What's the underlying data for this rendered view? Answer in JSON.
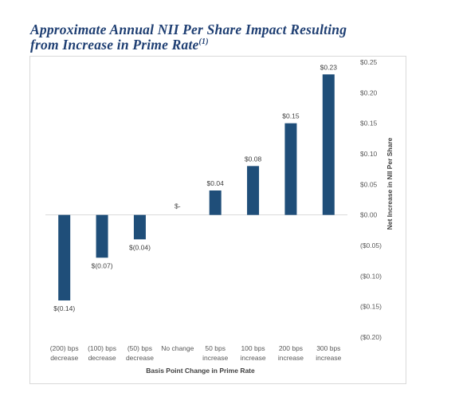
{
  "title_line1": "Approximate Annual NII Per Share Impact Resulting",
  "title_line2": "from Increase in Prime Rate",
  "title_footnote": "(1)",
  "chart_data": {
    "type": "bar",
    "title": "Approximate Annual NII Per Share Impact Resulting from Increase in Prime Rate(1)",
    "xlabel": "Basis Point Change in Prime Rate",
    "ylabel": "Net Increase in NII Per Share",
    "categories": [
      [
        "(200) bps",
        "decrease"
      ],
      [
        "(100) bps",
        "decrease"
      ],
      [
        "(50) bps",
        "decrease"
      ],
      [
        "No change"
      ],
      [
        "50 bps",
        "increase"
      ],
      [
        "100 bps",
        "increase"
      ],
      [
        "200 bps",
        "increase"
      ],
      [
        "300 bps",
        "increase"
      ]
    ],
    "values": [
      -0.14,
      -0.07,
      -0.04,
      0,
      0.04,
      0.08,
      0.15,
      0.23
    ],
    "data_labels": [
      "$(0.14)",
      "$(0.07)",
      "$(0.04)",
      "$-",
      "$0.04",
      "$0.08",
      "$0.15",
      "$0.23"
    ],
    "ylim": [
      -0.2,
      0.25
    ],
    "yticks": [
      0.25,
      0.2,
      0.15,
      0.1,
      0.05,
      0.0,
      -0.05,
      -0.1,
      -0.15,
      -0.2
    ],
    "ytick_labels": [
      "$0.25",
      "$0.20",
      "$0.15",
      "$0.10",
      "$0.05",
      "$0.00",
      "($0.05)",
      "($0.10)",
      "($0.15)",
      "($0.20)"
    ],
    "y_axis_side": "right",
    "grid": false,
    "bar_color": "#1f4e79"
  }
}
